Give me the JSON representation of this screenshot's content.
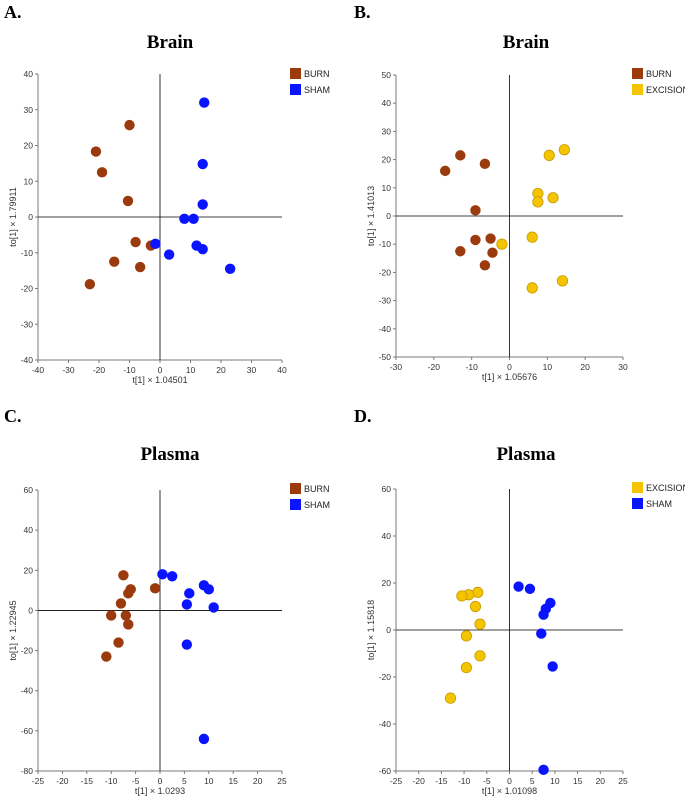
{
  "chart_data": [
    {
      "panel_label": "A.",
      "type": "scatter",
      "title": "Brain",
      "xlabel": "t[1] × 1.04501",
      "ylabel": "to[1] × 1.79911",
      "xlim": [
        -40,
        40
      ],
      "ylim": [
        -40,
        40
      ],
      "xticks": [
        -40,
        -30,
        -20,
        -10,
        0,
        10,
        20,
        30,
        40
      ],
      "yticks": [
        -40,
        -30,
        -20,
        -10,
        0,
        10,
        20,
        30,
        40
      ],
      "grid": false,
      "legend_position": "top-right",
      "series": [
        {
          "name": "BURN",
          "color": "#9b3a0c",
          "points": [
            [
              -21,
              18.3
            ],
            [
              -19,
              12.5
            ],
            [
              -10,
              25.7
            ],
            [
              -10.5,
              4.5
            ],
            [
              -8,
              -7
            ],
            [
              -15,
              -12.5
            ],
            [
              -6.5,
              -14
            ],
            [
              -3,
              -8
            ],
            [
              -23,
              -18.8
            ]
          ]
        },
        {
          "name": "SHAM",
          "color": "#0a14ff",
          "points": [
            [
              14.5,
              32
            ],
            [
              14,
              14.8
            ],
            [
              14,
              3.5
            ],
            [
              8,
              -0.5
            ],
            [
              11,
              -0.5
            ],
            [
              -1.5,
              -7.5
            ],
            [
              12,
              -8
            ],
            [
              14,
              -9
            ],
            [
              3,
              -10.5
            ],
            [
              23,
              -14.5
            ]
          ]
        }
      ]
    },
    {
      "panel_label": "B.",
      "type": "scatter",
      "title": "Brain",
      "xlabel": "t[1] × 1.05676",
      "ylabel": "to[1] × 1.41013",
      "xlim": [
        -30,
        30
      ],
      "ylim": [
        -50,
        50
      ],
      "xticks": [
        -30,
        -20,
        -10,
        0,
        10,
        20,
        30
      ],
      "yticks": [
        -50,
        -40,
        -30,
        -20,
        -10,
        0,
        10,
        20,
        30,
        40,
        50
      ],
      "grid": false,
      "legend_position": "top-right",
      "series": [
        {
          "name": "BURN",
          "color": "#9b3a0c",
          "points": [
            [
              -17,
              16
            ],
            [
              -13,
              21.5
            ],
            [
              -6.5,
              18.5
            ],
            [
              -9,
              2
            ],
            [
              -9,
              -8.5
            ],
            [
              -5,
              -8
            ],
            [
              -13,
              -12.5
            ],
            [
              -6.5,
              -17.5
            ],
            [
              -4.5,
              -13
            ]
          ]
        },
        {
          "name": "EXCISION",
          "color": "#f5c400",
          "points": [
            [
              14.5,
              23.5
            ],
            [
              10.5,
              21.5
            ],
            [
              7.5,
              8
            ],
            [
              11.5,
              6.5
            ],
            [
              7.5,
              5
            ],
            [
              -2,
              -10
            ],
            [
              6,
              -7.5
            ],
            [
              14,
              -23
            ],
            [
              6,
              -25.5
            ]
          ]
        }
      ]
    },
    {
      "panel_label": "C.",
      "type": "scatter",
      "title": "Plasma",
      "xlabel": "t[1] × 1.0293",
      "ylabel": "to[1] × 1.22945",
      "xlim": [
        -25,
        25
      ],
      "ylim": [
        -80,
        60
      ],
      "xticks": [
        -25,
        -20,
        -15,
        -10,
        -5,
        0,
        5,
        10,
        15,
        20,
        25
      ],
      "yticks": [
        -80,
        -60,
        -40,
        -20,
        0,
        20,
        40,
        60
      ],
      "grid": false,
      "legend_position": "top-right",
      "series": [
        {
          "name": "BURN",
          "color": "#9b3a0c",
          "points": [
            [
              -7.5,
              17.5
            ],
            [
              -6,
              10.5
            ],
            [
              -6.5,
              8.5
            ],
            [
              -1,
              11
            ],
            [
              -8,
              3.5
            ],
            [
              -10,
              -2.5
            ],
            [
              -7,
              -2.5
            ],
            [
              -6.5,
              -7
            ],
            [
              -8.5,
              -16
            ],
            [
              -11,
              -23
            ]
          ]
        },
        {
          "name": "SHAM",
          "color": "#0a14ff",
          "points": [
            [
              0.5,
              18
            ],
            [
              2.5,
              17
            ],
            [
              9,
              12.5
            ],
            [
              10,
              10.5
            ],
            [
              6,
              8.5
            ],
            [
              5.5,
              3
            ],
            [
              11,
              1.5
            ],
            [
              5.5,
              -17
            ],
            [
              9,
              -64
            ]
          ]
        }
      ]
    },
    {
      "panel_label": "D.",
      "type": "scatter",
      "title": "Plasma",
      "xlabel": "t[1] × 1.01098",
      "ylabel": "to[1] × 1.15818",
      "xlim": [
        -25,
        25
      ],
      "ylim": [
        -60,
        60
      ],
      "xticks": [
        -25,
        -20,
        -15,
        -10,
        -5,
        0,
        5,
        10,
        15,
        20,
        25
      ],
      "yticks": [
        -60,
        -40,
        -20,
        0,
        20,
        40,
        60
      ],
      "grid": false,
      "legend_position": "top-right",
      "series": [
        {
          "name": "EXCISION",
          "color": "#f5c400",
          "points": [
            [
              -7,
              16
            ],
            [
              -9,
              15
            ],
            [
              -10.5,
              14.5
            ],
            [
              -7.5,
              10
            ],
            [
              -6.5,
              2.5
            ],
            [
              -9.5,
              -2.5
            ],
            [
              -6.5,
              -11
            ],
            [
              -9.5,
              -16
            ],
            [
              -13,
              -29
            ]
          ]
        },
        {
          "name": "SHAM",
          "color": "#0a14ff",
          "points": [
            [
              2,
              18.5
            ],
            [
              4.5,
              17.5
            ],
            [
              9,
              11.5
            ],
            [
              8,
              9
            ],
            [
              7.5,
              6.5
            ],
            [
              7,
              -1.5
            ],
            [
              9.5,
              -15.5
            ],
            [
              7.5,
              -59.5
            ]
          ]
        }
      ]
    }
  ]
}
